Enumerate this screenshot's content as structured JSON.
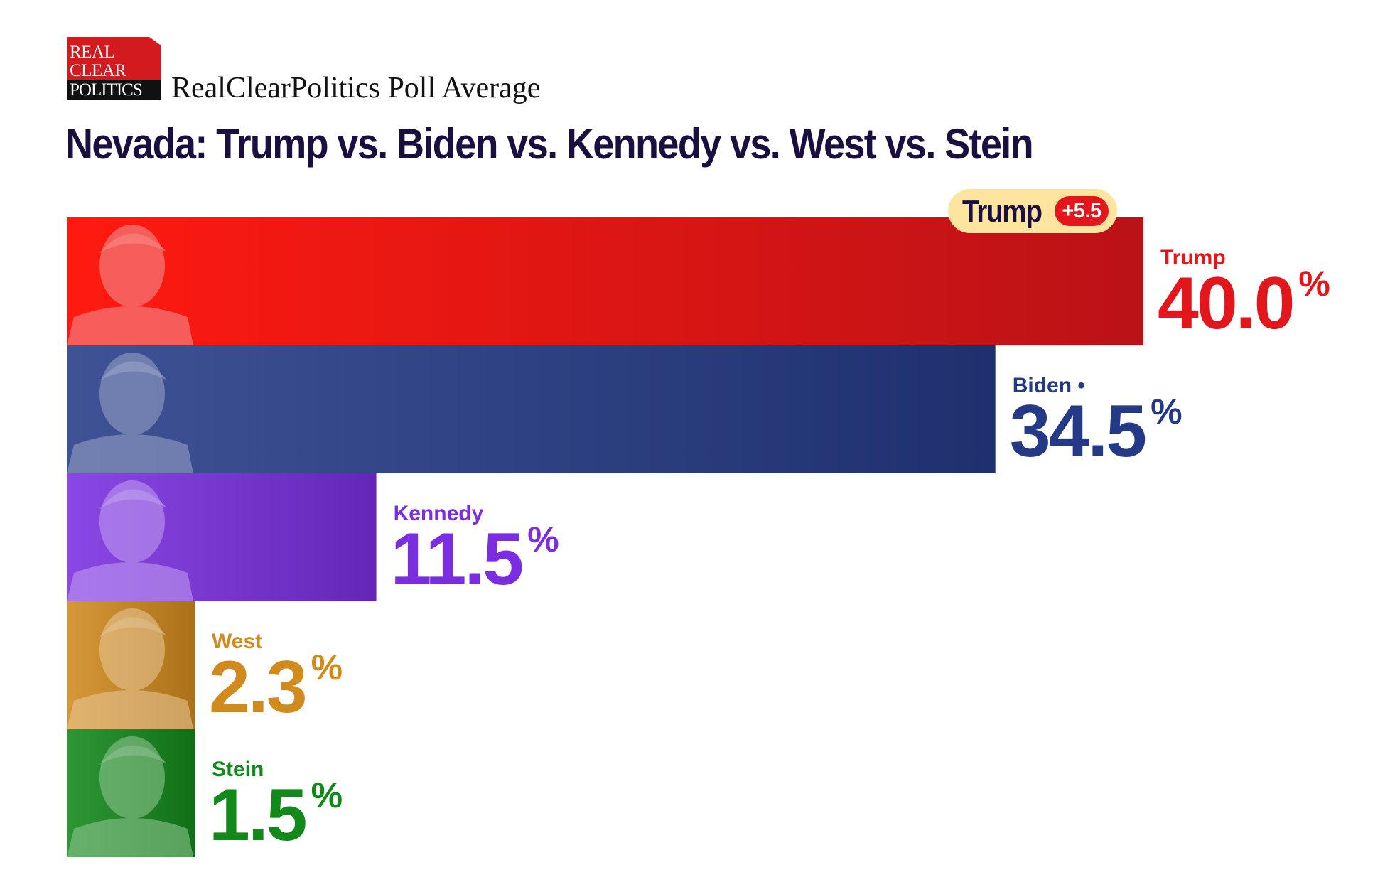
{
  "header": {
    "logo_lines": [
      "REAL",
      "CLEAR",
      "POLITICS"
    ],
    "subtitle": "RealClearPolitics Poll Average"
  },
  "leader_badge": {
    "name": "Trump",
    "margin": "+5.5"
  },
  "colors": {
    "trump": "#e3161c",
    "biden": "#243a86",
    "kennedy": "#7a2ee0",
    "west": "#d08a1e",
    "stein": "#13881b",
    "title": "#1b0f3f"
  },
  "chart_data": {
    "type": "bar",
    "orientation": "horizontal",
    "title": "Nevada: Trump vs. Biden vs. Kennedy vs. West vs. Stein",
    "categories": [
      "Trump",
      "Biden •",
      "Kennedy",
      "West",
      "Stein"
    ],
    "values": [
      40.0,
      34.5,
      11.5,
      2.3,
      1.5
    ],
    "value_labels": [
      "40.0",
      "34.5",
      "11.5",
      "2.3",
      "1.5"
    ],
    "unit": "%",
    "colors": [
      "#e3161c",
      "#243a86",
      "#7a2ee0",
      "#d08a1e",
      "#13881b"
    ],
    "legend": "none",
    "grid": false
  }
}
